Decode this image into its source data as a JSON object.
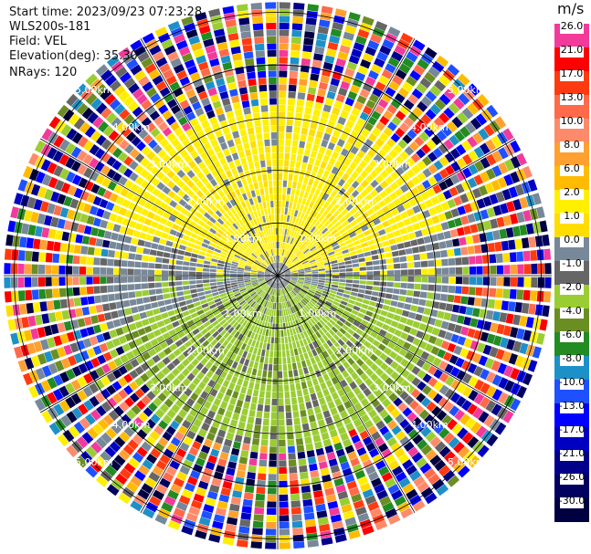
{
  "header": {
    "start_time": "Start time: 2023/09/23 07:23:28",
    "instrument": "WLS200s-181",
    "field": "Field: VEL",
    "elevation": "Elevation(deg): 35.30",
    "nrays": "NRays: 120"
  },
  "colorbar": {
    "unit": "m/s",
    "bands": [
      {
        "label": "26.0",
        "color": "#f23a9b"
      },
      {
        "label": "21.0",
        "color": "#ff0000"
      },
      {
        "label": "17.0",
        "color": "#ff3a10"
      },
      {
        "label": "13.0",
        "color": "#ff6a4a"
      },
      {
        "label": "10.0",
        "color": "#ff8a6a"
      },
      {
        "label": "8.0",
        "color": "#ffa030"
      },
      {
        "label": "6.0",
        "color": "#ffbb00"
      },
      {
        "label": "2.0",
        "color": "#fff000"
      },
      {
        "label": "1.0",
        "color": "#ffdd00"
      },
      {
        "label": "0.0",
        "color": "#778899"
      },
      {
        "label": "-1.0",
        "color": "#666666"
      },
      {
        "label": "-2.0",
        "color": "#9acd32"
      },
      {
        "label": "-4.0",
        "color": "#6b8e23"
      },
      {
        "label": "-6.0",
        "color": "#228b22"
      },
      {
        "label": "-8.0",
        "color": "#1e90c8"
      },
      {
        "label": "-10.0",
        "color": "#1e50ff"
      },
      {
        "label": "-13.0",
        "color": "#0000ff"
      },
      {
        "label": "-17.0",
        "color": "#0000c0"
      },
      {
        "label": "-21.0",
        "color": "#00008b"
      },
      {
        "label": "-26.0",
        "color": "#000060"
      },
      {
        "label": "-30.0",
        "color": "#000040"
      }
    ]
  },
  "chart_data": {
    "type": "heatmap",
    "projection": "polar (PPI)",
    "field": "VEL",
    "unit": "m/s",
    "nrays": 120,
    "range_ring_labels": [
      "1.00km",
      "2.00km",
      "3.00km",
      "4.00km",
      "5.00km"
    ],
    "range_rings_km": [
      1,
      2,
      3,
      4,
      5
    ],
    "max_range_km": 5.2,
    "vmin": -30,
    "vmax": 26,
    "pattern": "positive velocities (yellow, ~1-2 m/s) in the northern half within about 3 km, negative velocities (green, ~-2 m/s) in the southern half within about 3 km, gray near-zero around the east-west axis, noisy random values beyond about 3.2 km",
    "grid": true
  }
}
